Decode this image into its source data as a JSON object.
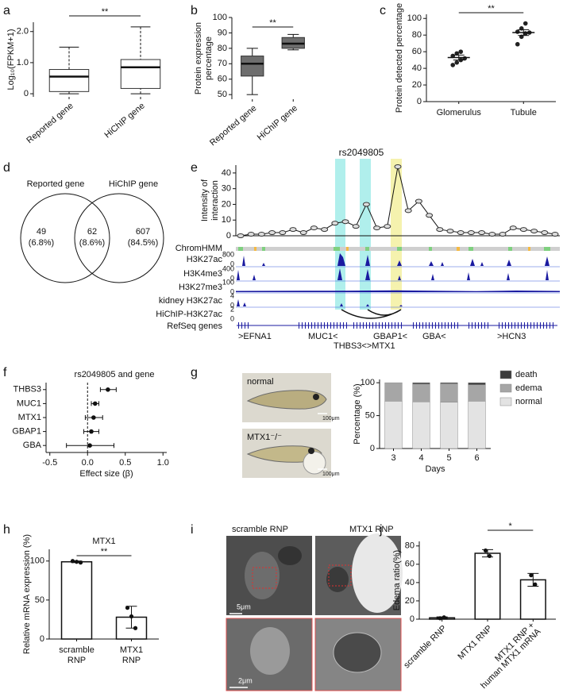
{
  "chart_data": [
    {
      "type": "box",
      "panel": "a",
      "ylabel": "Log₁₀(FPKM+1)",
      "categories": [
        "Reported gene",
        "HiChIP gene"
      ],
      "whisker_low": [
        0,
        0
      ],
      "q1": [
        0.07,
        0.17
      ],
      "median": [
        0.55,
        0.85
      ],
      "q3": [
        0.78,
        1.1
      ],
      "whisker_high": [
        1.5,
        2.15
      ],
      "box_color": "#ffffff",
      "whisker_dash": true,
      "annotation": "**",
      "ylim": [
        -0.1,
        2.3
      ],
      "yticks": [
        0,
        {
          "value": 1,
          "label": "1.0"
        },
        {
          "value": 2,
          "label": "2.0"
        }
      ]
    },
    {
      "type": "box",
      "panel": "b",
      "ylabel": [
        "Protein expression",
        "percentage"
      ],
      "categories": [
        "Reported gene",
        "HiChIP gene"
      ],
      "whisker_low": [
        50,
        79
      ],
      "q1": [
        62,
        80
      ],
      "median": [
        70,
        83
      ],
      "q3": [
        75,
        87
      ],
      "whisker_high": [
        80,
        89
      ],
      "box_color": "#6e6e6e",
      "whisker_dash": false,
      "annotation": "**",
      "ylim": [
        47,
        100
      ],
      "yticks": [
        50,
        60,
        70,
        80,
        90,
        100
      ]
    },
    {
      "type": "dot",
      "panel": "c",
      "ylabel": "Protein detected percentage",
      "categories": [
        "Glomerulus",
        "Tubule"
      ],
      "points": [
        [
          44,
          47,
          50,
          52,
          55,
          58,
          60
        ],
        [
          69,
          78,
          82,
          83,
          84,
          88,
          94
        ]
      ],
      "mean": [
        53,
        83
      ],
      "sem": [
        3,
        3.5
      ],
      "annotation": "**",
      "ylim": [
        0,
        105
      ],
      "yticks": [
        0,
        20,
        40,
        60,
        80,
        100
      ]
    },
    {
      "type": "venn",
      "panel": "d",
      "sets": [
        "Reported gene",
        "HiChIP gene"
      ],
      "values": [
        49,
        62,
        607
      ],
      "percent_labels": [
        "(6.8%)",
        "(8.6%)",
        "(84.5%)"
      ]
    },
    {
      "type": "line",
      "panel": "e",
      "title": "rs2049805",
      "ylabel": [
        "Intensity of",
        "interaction"
      ],
      "values": [
        0,
        1,
        1,
        2,
        2,
        4,
        2,
        5,
        4,
        8,
        9,
        6,
        20,
        5,
        6,
        44,
        16,
        22,
        13,
        4,
        3,
        2,
        2,
        2,
        1,
        1,
        5,
        4,
        3,
        2,
        1
      ],
      "ylim": [
        0,
        45
      ],
      "yticks": [
        0,
        10,
        20,
        30,
        40
      ],
      "tracks": [
        {
          "name": "ChromHMM"
        },
        {
          "name": "H3K27ac",
          "range": [
            800,
            0
          ]
        },
        {
          "name": "H3K4me3",
          "range": [
            400,
            0
          ]
        },
        {
          "name": "H3K27me3",
          "range": [
            100,
            0
          ]
        },
        {
          "name": "kidney H3K27ac",
          "range": [
            4,
            0
          ]
        },
        {
          "name": "HiChIP-H3K27ac",
          "range": [
            2,
            0
          ]
        },
        {
          "name": "RefSeq genes"
        }
      ],
      "genes": [
        ">EFNA1",
        "MUC1<",
        "THBS3<>MTX1",
        "GBAP1<",
        "GBA<",
        ">HCN3"
      ]
    },
    {
      "type": "forest",
      "panel": "f",
      "title": "rs2049805 and gene",
      "xlabel": "Effect size (β)",
      "categories": [
        "THBS3",
        "MUC1",
        "MTX1",
        "GBAP1",
        "GBA"
      ],
      "values": [
        0.27,
        0.1,
        0.08,
        0.05,
        0.03
      ],
      "ci_low": [
        0.17,
        0.05,
        -0.03,
        -0.05,
        -0.28
      ],
      "ci_high": [
        0.38,
        0.15,
        0.2,
        0.15,
        0.35
      ],
      "xlim": [
        -0.55,
        1.05
      ],
      "xticks": [
        -0.5,
        {
          "value": 0,
          "label": "0.0"
        },
        0.5,
        {
          "value": 1,
          "label": "1.0"
        }
      ]
    },
    {
      "type": "image",
      "panel": "g",
      "labels": [
        "normal",
        "MTX1⁻/⁻"
      ],
      "scale_bars": [
        "100μm",
        "100μm"
      ]
    },
    {
      "type": "stacked",
      "ylabel": "Percentage (%)",
      "xlabel": "Days",
      "categories": [
        "3",
        "4",
        "5",
        "6"
      ],
      "series": [
        {
          "name": "death",
          "color": "#3c3c3c",
          "values": [
            0,
            2,
            1.5,
            3
          ]
        },
        {
          "name": "edema",
          "color": "#a6a6a6",
          "values": [
            28,
            27,
            28,
            25
          ]
        },
        {
          "name": "normal",
          "color": "#e3e3e3",
          "values": [
            72,
            71,
            70.5,
            72
          ]
        }
      ],
      "ylim": [
        0,
        105
      ],
      "yticks": [
        0,
        50,
        100
      ]
    },
    {
      "type": "bar",
      "panel": "h",
      "title": "MTX1",
      "ylabel": "Relative mRNA expression (%)",
      "categories": [
        [
          "scramble",
          "RNP"
        ],
        [
          "MTX1",
          "RNP"
        ]
      ],
      "values": [
        99,
        28
      ],
      "errors": [
        1,
        14
      ],
      "points": [
        [
          100,
          99,
          98
        ],
        [
          40,
          29,
          14
        ]
      ],
      "annotation": "**",
      "ylim": [
        0,
        115
      ],
      "yticks": [
        0,
        50,
        100
      ]
    },
    {
      "type": "image",
      "panel": "i",
      "labels": [
        "scramble RNP",
        "MTX1 RNP"
      ],
      "scale_bars": [
        "5μm",
        "2μm"
      ]
    },
    {
      "type": "bar",
      "panel": "j",
      "ylabel": "Edema ratio(%)",
      "categories": [
        [
          "scramble RNP"
        ],
        [
          "MTX1 RNP"
        ],
        [
          "MTX1 RNP +",
          "human MTX1 mRNA"
        ]
      ],
      "values": [
        1.5,
        72,
        43
      ],
      "errors": [
        1,
        4,
        7
      ],
      "points": [
        [
          1,
          2
        ],
        [
          75,
          69
        ],
        [
          48,
          38
        ]
      ],
      "annotation": "*",
      "ylim": [
        0,
        85
      ],
      "yticks": [
        0,
        20,
        40,
        60,
        80
      ]
    }
  ]
}
